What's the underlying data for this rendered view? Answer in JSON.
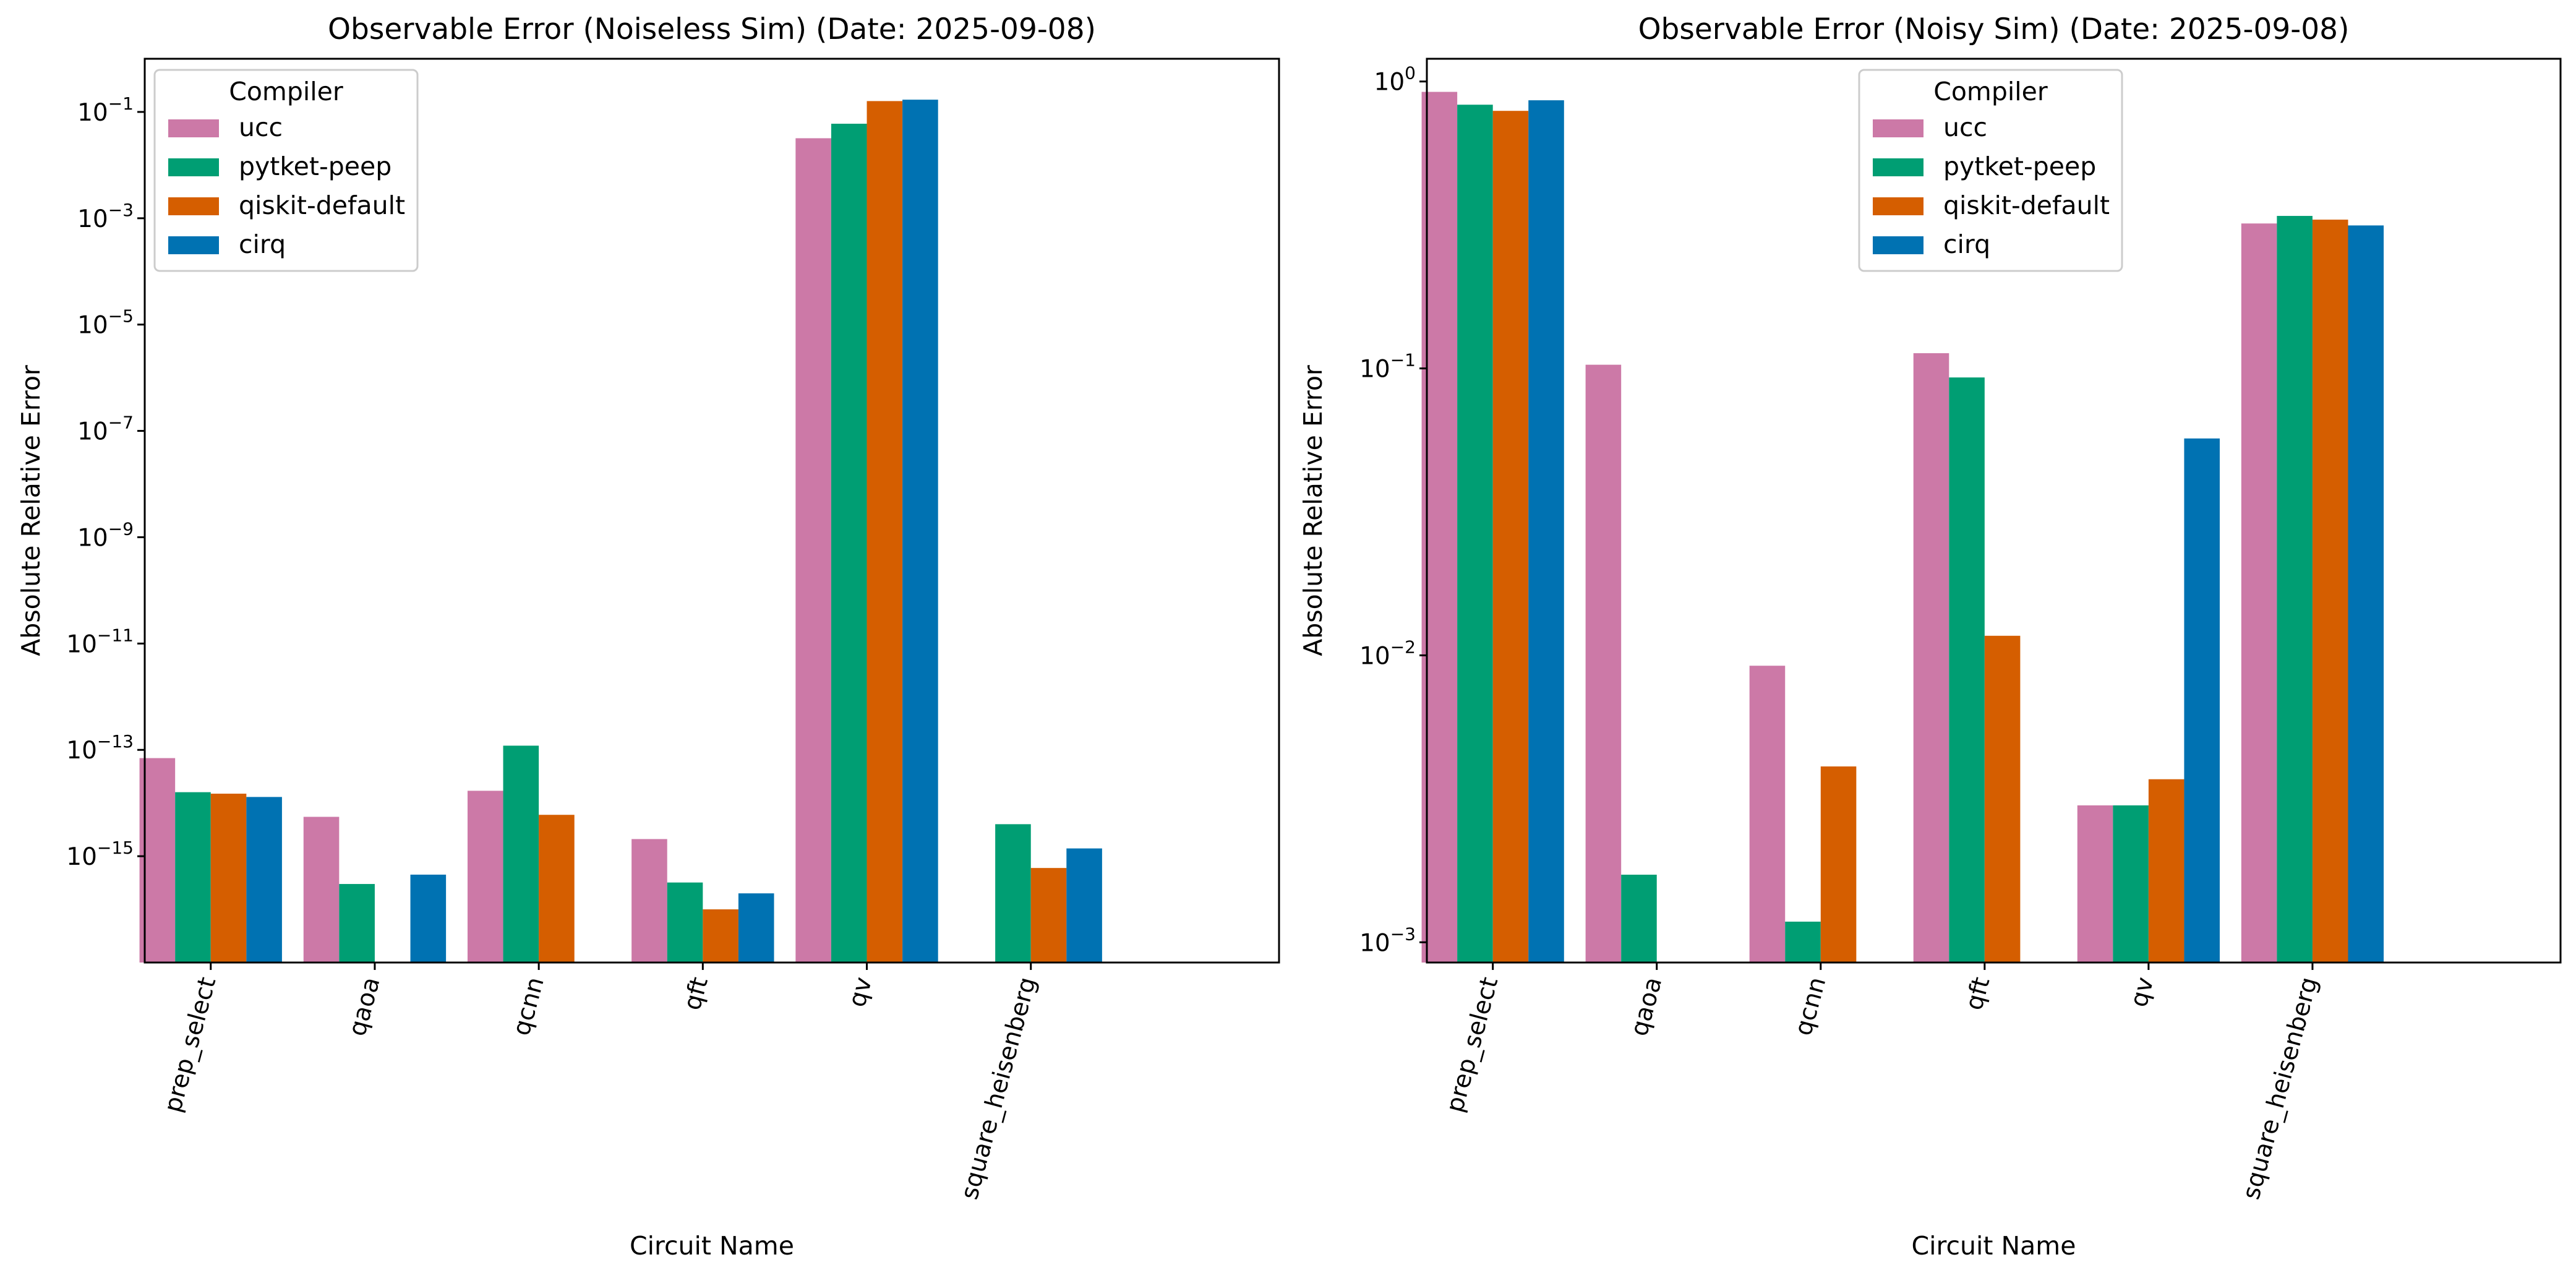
{
  "colors": {
    "ucc": "#CC79A7",
    "pytket-peep": "#009E73",
    "qiskit-default": "#D55E00",
    "cirq": "#0072B2"
  },
  "chart_data": [
    {
      "type": "bar",
      "title": "Observable Error (Noiseless Sim) (Date: 2025-09-08)",
      "xlabel": "Circuit Name",
      "ylabel": "Absolute Relative Error",
      "yscale": "log",
      "ylim": [
        1e-17,
        1.0
      ],
      "yticks": [
        {
          "value": 0.1,
          "base": "10",
          "exp": "−1"
        },
        {
          "value": 0.001,
          "base": "10",
          "exp": "−3"
        },
        {
          "value": 1e-05,
          "base": "10",
          "exp": "−5"
        },
        {
          "value": 1e-07,
          "base": "10",
          "exp": "−7"
        },
        {
          "value": 1e-09,
          "base": "10",
          "exp": "−9"
        },
        {
          "value": 1e-11,
          "base": "10",
          "exp": "−11"
        },
        {
          "value": 1e-13,
          "base": "10",
          "exp": "−13"
        },
        {
          "value": 1e-15,
          "base": "10",
          "exp": "−15"
        }
      ],
      "categories": [
        "prep_select",
        "qaoa",
        "qcnn",
        "qft",
        "qv",
        "square_heisenberg"
      ],
      "legend": {
        "title": "Compiler",
        "position": "upper-left"
      },
      "series": [
        {
          "name": "ucc",
          "values": [
            7e-14,
            5.5e-15,
            1.7e-14,
            2.1e-15,
            0.032,
            null
          ]
        },
        {
          "name": "pytket-peep",
          "values": [
            1.6e-14,
            3e-16,
            1.2e-13,
            3.2e-16,
            0.06,
            4e-15
          ]
        },
        {
          "name": "qiskit-default",
          "values": [
            1.5e-14,
            null,
            6e-15,
            1e-16,
            0.16,
            6e-16
          ]
        },
        {
          "name": "cirq",
          "values": [
            1.3e-14,
            4.5e-16,
            null,
            2e-16,
            0.17,
            1.4e-15
          ]
        }
      ]
    },
    {
      "type": "bar",
      "title": "Observable Error (Noisy Sim) (Date: 2025-09-08)",
      "xlabel": "Circuit Name",
      "ylabel": "Absolute Relative Error",
      "yscale": "log",
      "ylim": [
        0.00085,
        1.2
      ],
      "yticks": [
        {
          "value": 1,
          "base": "10",
          "exp": "0"
        },
        {
          "value": 0.1,
          "base": "10",
          "exp": "−1"
        },
        {
          "value": 0.01,
          "base": "10",
          "exp": "−2"
        },
        {
          "value": 0.001,
          "base": "10",
          "exp": "−3"
        }
      ],
      "categories": [
        "prep_select",
        "qaoa",
        "qcnn",
        "qft",
        "qv",
        "square_heisenberg"
      ],
      "legend": {
        "title": "Compiler",
        "position": "upper-center"
      },
      "series": [
        {
          "name": "ucc",
          "values": [
            0.92,
            0.103,
            0.0092,
            0.113,
            0.003,
            0.32
          ]
        },
        {
          "name": "pytket-peep",
          "values": [
            0.83,
            0.00172,
            0.00118,
            0.093,
            0.003,
            0.34
          ]
        },
        {
          "name": "qiskit-default",
          "values": [
            0.79,
            null,
            0.0041,
            0.0117,
            0.0037,
            0.33
          ]
        },
        {
          "name": "cirq",
          "values": [
            0.86,
            null,
            null,
            null,
            0.057,
            0.315
          ]
        }
      ]
    }
  ]
}
